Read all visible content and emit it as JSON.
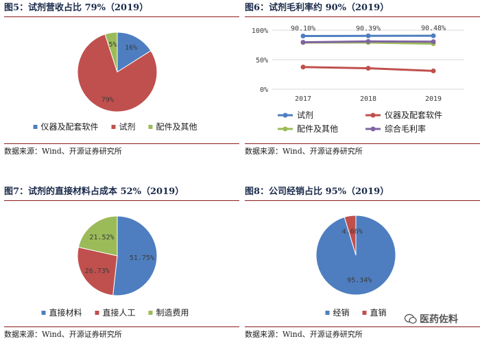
{
  "colors": {
    "blue": "#4e7ec0",
    "red": "#c0504d",
    "green": "#9bbb59",
    "purple": "#8064a2",
    "title_rule": "#8a1a1a"
  },
  "panels": {
    "fig5": {
      "title": "图5：试剂营收占比 79%（2019）",
      "source": "数据来源：Wind、开源证券研究所"
    },
    "fig6": {
      "title": "图6：试剂毛利率约 90%（2019）",
      "source": "数据来源：Wind、开源证券研究所"
    },
    "fig7": {
      "title": "图7：试剂的直接材料占成本 52%（2019）",
      "source": "数据来源：Wind、开源证券研究所"
    },
    "fig8": {
      "title": "图8：公司经销占比 95%（2019）",
      "source": "数据来源：Wind、开源证券研究所"
    }
  },
  "watermark": "医药佐料",
  "chart_data": [
    {
      "id": "fig5",
      "type": "pie",
      "slices": [
        {
          "name": "仪器及配套软件",
          "value": 16,
          "label": "16%",
          "color": "#4e7ec0"
        },
        {
          "name": "试剂",
          "value": 79,
          "label": "79%",
          "color": "#c0504d"
        },
        {
          "name": "配件及其他",
          "value": 5,
          "label": "5%",
          "color": "#9bbb59"
        }
      ],
      "legend_position": "bottom"
    },
    {
      "id": "fig6",
      "type": "line",
      "categories": [
        "2017",
        "2018",
        "2019"
      ],
      "ylim": [
        0,
        100
      ],
      "yticks": [
        "0%",
        "50%",
        "100%"
      ],
      "grid": true,
      "series": [
        {
          "name": "试剂",
          "values": [
            90.1,
            90.39,
            90.48
          ],
          "labels": [
            "90.10%",
            "90.39%",
            "90.48%"
          ],
          "color": "#4e7ec0"
        },
        {
          "name": "仪器及配套软件",
          "values": [
            37.5,
            35.5,
            31.0
          ],
          "color": "#c0504d"
        },
        {
          "name": "配件及其他",
          "values": [
            79.0,
            79.0,
            77.0
          ],
          "color": "#9bbb59"
        },
        {
          "name": "综合毛利率",
          "values": [
            79.5,
            81.0,
            80.5
          ],
          "color": "#8064a2"
        }
      ],
      "legend_position": "bottom"
    },
    {
      "id": "fig7",
      "type": "pie",
      "slices": [
        {
          "name": "直接材料",
          "value": 51.75,
          "label": "51.75%",
          "color": "#4e7ec0"
        },
        {
          "name": "直接人工",
          "value": 26.73,
          "label": "26.73%",
          "color": "#c0504d"
        },
        {
          "name": "制造费用",
          "value": 21.52,
          "label": "21.52%",
          "color": "#9bbb59"
        }
      ],
      "legend_position": "bottom"
    },
    {
      "id": "fig8",
      "type": "pie",
      "slices": [
        {
          "name": "经销",
          "value": 95.34,
          "label": "95.34%",
          "color": "#4e7ec0"
        },
        {
          "name": "直销",
          "value": 4.66,
          "label": "4.66%",
          "color": "#c0504d"
        }
      ],
      "legend_position": "bottom"
    }
  ]
}
